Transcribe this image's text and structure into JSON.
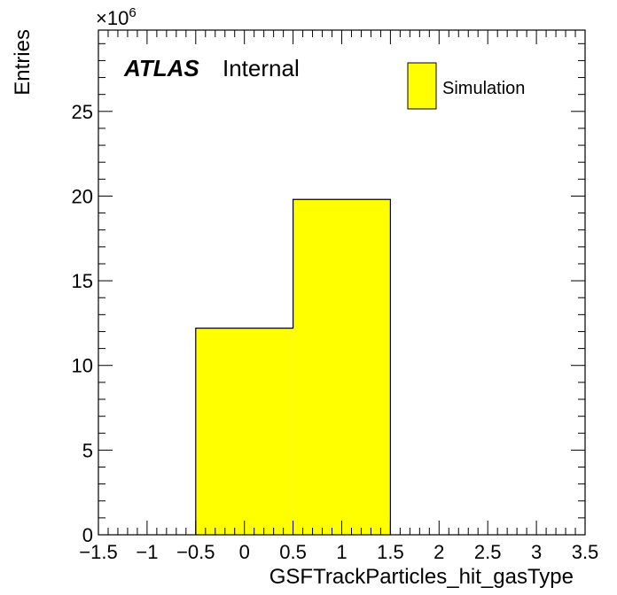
{
  "chart_data": {
    "type": "bar",
    "subtype": "histogram",
    "bin_edges": [
      -0.5,
      0.5,
      1.5
    ],
    "values": [
      12200000,
      19800000
    ],
    "xlabel": "GSFTrackParticles_hit_gasType",
    "ylabel": "Entries",
    "xlim": [
      -1.5,
      3.5
    ],
    "ylim": [
      0,
      29800000
    ],
    "x_ticks": [
      "−1.5",
      "−1",
      "−0.5",
      "0",
      "0.5",
      "1",
      "1.5",
      "2",
      "2.5",
      "3",
      "3.5"
    ],
    "x_tick_values": [
      -1.5,
      -1,
      -0.5,
      0,
      0.5,
      1,
      1.5,
      2,
      2.5,
      3,
      3.5
    ],
    "y_ticks": [
      "0",
      "5",
      "10",
      "15",
      "20",
      "25"
    ],
    "y_tick_values": [
      0,
      5,
      10,
      15,
      20,
      25
    ],
    "y_multiplier": "×10",
    "y_multiplier_exponent": "6",
    "grid": false,
    "legend": {
      "placement": "top-right",
      "entries": [
        {
          "label": "Simulation",
          "color": "#ffff00"
        }
      ]
    },
    "annotations": {
      "atlas": "ATLAS",
      "status": "Internal"
    },
    "colors": {
      "fill": "#ffff00",
      "line": "#000000"
    }
  }
}
